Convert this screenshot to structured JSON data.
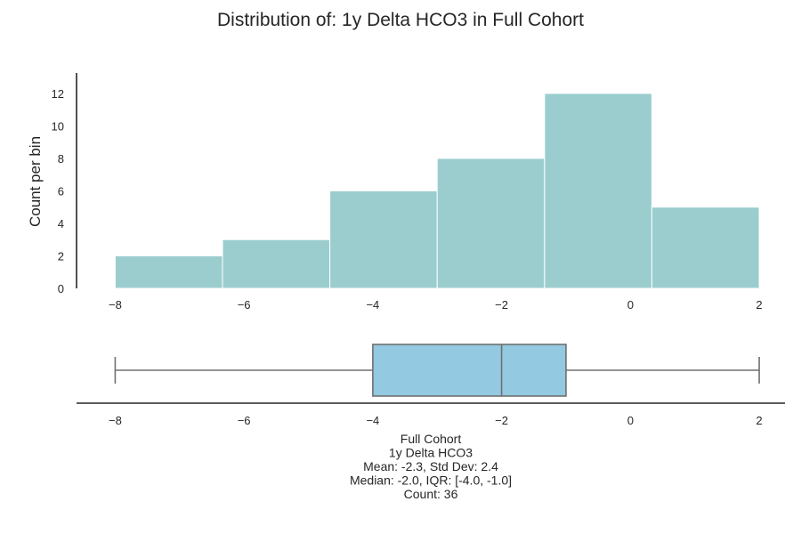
{
  "chart_data": [
    {
      "type": "histogram",
      "title": "Distribution of: 1y Delta HCO3 in Full Cohort",
      "ylabel": "Count per bin",
      "xlabel": "",
      "bins": [
        {
          "x0": -8.0,
          "x1": -6.333,
          "count": 2
        },
        {
          "x0": -6.333,
          "x1": -4.667,
          "count": 3
        },
        {
          "x0": -4.667,
          "x1": -3.0,
          "count": 6
        },
        {
          "x0": -3.0,
          "x1": -1.333,
          "count": 8
        },
        {
          "x0": -1.333,
          "x1": 0.333,
          "count": 12
        },
        {
          "x0": 0.333,
          "x1": 2.0,
          "count": 5
        }
      ],
      "xlim": [
        -8.6,
        2.4
      ],
      "ylim": [
        0,
        12.6
      ],
      "xticks": [
        -8,
        -6,
        -4,
        -2,
        0,
        2
      ],
      "xtick_labels": [
        "−8",
        "−6",
        "−4",
        "−2",
        "0",
        "2"
      ],
      "yticks": [
        0,
        2,
        4,
        6,
        8,
        10,
        12
      ],
      "ytick_labels": [
        "0",
        "2",
        "4",
        "6",
        "8",
        "10",
        "12"
      ],
      "color": "#9bcdcf",
      "grid": false
    },
    {
      "type": "boxplot",
      "series": [
        {
          "whisker_low": -8.0,
          "q1": -4.0,
          "median": -2.0,
          "q3": -1.0,
          "whisker_high": 2.0
        }
      ],
      "xlim": [
        -8.6,
        2.4
      ],
      "xticks": [
        -8,
        -6,
        -4,
        -2,
        0,
        2
      ],
      "xtick_labels": [
        "−8",
        "−6",
        "−4",
        "−2",
        "0",
        "2"
      ],
      "box_color": "#93c9e1",
      "line_color": "#707070",
      "grid": false
    }
  ],
  "stats_text": [
    "Full Cohort",
    "1y Delta HCO3",
    "Mean: -2.3, Std Dev: 2.4",
    "Median: -2.0, IQR: [-4.0, -1.0]",
    "Count: 36"
  ]
}
